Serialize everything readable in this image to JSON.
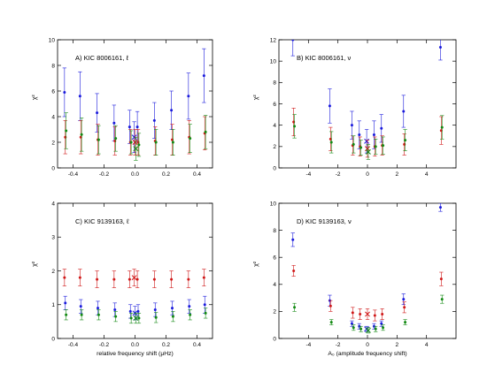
{
  "colors": {
    "blue": "#1a1adc",
    "green": "#138a13",
    "red": "#d01818",
    "axis": "#000000"
  },
  "chart_data": [
    {
      "type": "scatter",
      "title": "A) KIC 8006161, ℓ",
      "xlabel": "",
      "ylabel": "χ²",
      "xlim": [
        -0.5,
        0.5
      ],
      "ylim": [
        0,
        10
      ],
      "xticks": [
        "-0.4",
        "-0.2",
        "0.0",
        "0.2",
        "0.4"
      ],
      "xtick_values": [
        -0.4,
        -0.2,
        0,
        0.2,
        0.4
      ],
      "yticks": [
        "0",
        "2",
        "4",
        "6",
        "8",
        "10"
      ],
      "ytick_values": [
        0,
        2,
        4,
        6,
        8,
        10
      ],
      "x": [
        -0.45,
        -0.35,
        -0.24,
        -0.13,
        -0.03,
        0.0,
        0.02,
        0.13,
        0.24,
        0.35,
        0.45
      ],
      "cross_x": [
        0.0
      ],
      "series": [
        {
          "color": "blue",
          "values": [
            5.9,
            5.6,
            4.3,
            3.5,
            3.2,
            2.4,
            3.2,
            3.7,
            4.5,
            5.6,
            7.2
          ],
          "errors": [
            1.9,
            1.9,
            1.5,
            1.4,
            1.3,
            1.2,
            1.2,
            1.4,
            1.5,
            1.8,
            2.1
          ]
        },
        {
          "color": "red",
          "values": [
            2.4,
            2.4,
            2.2,
            2.1,
            2.0,
            2.0,
            2.0,
            2.1,
            2.2,
            2.4,
            2.7
          ],
          "errors": [
            1.3,
            1.3,
            1.2,
            1.1,
            1.0,
            1.0,
            1.0,
            1.1,
            1.2,
            1.3,
            1.3
          ]
        },
        {
          "color": "green",
          "values": [
            2.9,
            2.6,
            2.2,
            2.3,
            2.0,
            1.5,
            1.8,
            2.0,
            2.0,
            2.3,
            2.8
          ],
          "errors": [
            1.4,
            1.3,
            1.1,
            1.0,
            0.9,
            0.9,
            0.9,
            1.0,
            1.0,
            1.1,
            1.3
          ]
        }
      ]
    },
    {
      "type": "scatter",
      "title": "B) KIC 8006161, ν",
      "xlabel": "",
      "ylabel": "χ²",
      "xlim": [
        -6,
        6
      ],
      "ylim": [
        0,
        12
      ],
      "xticks": [
        "-4",
        "-2",
        "0",
        "2",
        "4"
      ],
      "xtick_values": [
        -4,
        -2,
        0,
        2,
        4
      ],
      "yticks": [
        "0",
        "2",
        "4",
        "6",
        "8",
        "10",
        "12"
      ],
      "ytick_values": [
        0,
        2,
        4,
        6,
        8,
        10,
        12
      ],
      "x": [
        -5,
        -2.5,
        -1,
        -0.5,
        0,
        0.5,
        1,
        2.5,
        5
      ],
      "cross_x": [
        0
      ],
      "series": [
        {
          "color": "blue",
          "values": [
            12.0,
            5.8,
            4.0,
            3.1,
            2.5,
            3.1,
            3.7,
            5.3,
            11.3
          ],
          "errors": [
            1.5,
            1.6,
            1.3,
            1.3,
            1.1,
            1.3,
            1.3,
            1.5,
            1.2
          ]
        },
        {
          "color": "red",
          "values": [
            4.3,
            2.7,
            2.1,
            2.0,
            1.8,
            2.0,
            2.1,
            2.2,
            3.5
          ],
          "errors": [
            1.3,
            1.1,
            0.9,
            0.9,
            0.8,
            0.9,
            0.9,
            1.0,
            1.3
          ]
        },
        {
          "color": "green",
          "values": [
            3.9,
            2.4,
            2.2,
            1.9,
            1.5,
            2.0,
            2.1,
            2.6,
            3.8
          ],
          "errors": [
            1.1,
            1.0,
            0.8,
            0.7,
            0.7,
            0.7,
            0.8,
            1.0,
            1.1
          ]
        }
      ]
    },
    {
      "type": "scatter",
      "title": "C) KIC 9139163, ℓ",
      "xlabel": "relative frequency shift (μHz)",
      "ylabel": "χ²",
      "xlim": [
        -0.5,
        0.5
      ],
      "ylim": [
        0,
        4
      ],
      "xticks": [
        "-0.4",
        "-0.2",
        "0.0",
        "0.2",
        "0.4"
      ],
      "xtick_values": [
        -0.4,
        -0.2,
        0,
        0.2,
        0.4
      ],
      "yticks": [
        "0",
        "1",
        "2",
        "3",
        "4"
      ],
      "ytick_values": [
        0,
        1,
        2,
        3,
        4
      ],
      "x": [
        -0.45,
        -0.35,
        -0.24,
        -0.13,
        -0.03,
        0.0,
        0.02,
        0.13,
        0.24,
        0.35,
        0.45
      ],
      "cross_x": [
        0.0
      ],
      "series": [
        {
          "color": "red",
          "values": [
            1.8,
            1.8,
            1.75,
            1.75,
            1.75,
            1.8,
            1.75,
            1.75,
            1.75,
            1.75,
            1.8
          ],
          "errors": [
            0.25,
            0.25,
            0.25,
            0.25,
            0.25,
            0.25,
            0.25,
            0.25,
            0.25,
            0.25,
            0.25
          ]
        },
        {
          "color": "blue",
          "values": [
            1.05,
            0.95,
            0.9,
            0.85,
            0.8,
            0.75,
            0.8,
            0.85,
            0.9,
            0.95,
            1.0
          ],
          "errors": [
            0.2,
            0.2,
            0.2,
            0.2,
            0.2,
            0.2,
            0.2,
            0.2,
            0.2,
            0.2,
            0.25
          ]
        },
        {
          "color": "green",
          "values": [
            0.7,
            0.7,
            0.7,
            0.65,
            0.6,
            0.6,
            0.6,
            0.62,
            0.65,
            0.7,
            0.75
          ],
          "errors": [
            0.15,
            0.15,
            0.15,
            0.15,
            0.15,
            0.15,
            0.15,
            0.15,
            0.15,
            0.15,
            0.15
          ]
        }
      ]
    },
    {
      "type": "scatter",
      "title": "D) KIC 9139163, ν",
      "xlabel": "A₀ (amplitude frequency shift)",
      "ylabel": "χ²",
      "xlim": [
        -6,
        6
      ],
      "ylim": [
        0,
        10
      ],
      "xticks": [
        "-4",
        "-2",
        "0",
        "2",
        "4"
      ],
      "xtick_values": [
        -4,
        -2,
        0,
        2,
        4
      ],
      "yticks": [
        "0",
        "2",
        "4",
        "6",
        "8",
        "10"
      ],
      "ytick_values": [
        0,
        2,
        4,
        6,
        8,
        10
      ],
      "x": [
        -5,
        -2.5,
        -1,
        -0.5,
        0,
        0.5,
        1,
        2.5,
        5
      ],
      "cross_x": [
        0
      ],
      "series": [
        {
          "color": "blue",
          "values": [
            7.3,
            2.8,
            1.1,
            0.9,
            0.7,
            0.9,
            1.1,
            2.9,
            9.7
          ],
          "errors": [
            0.5,
            0.4,
            0.2,
            0.2,
            0.2,
            0.2,
            0.2,
            0.4,
            0.3
          ]
        },
        {
          "color": "red",
          "values": [
            5.0,
            2.4,
            1.9,
            1.8,
            1.8,
            1.7,
            1.8,
            2.3,
            4.4
          ],
          "errors": [
            0.4,
            0.4,
            0.4,
            0.4,
            0.4,
            0.4,
            0.4,
            0.4,
            0.5
          ]
        },
        {
          "color": "green",
          "values": [
            2.3,
            1.2,
            0.8,
            0.7,
            0.6,
            0.7,
            0.8,
            1.2,
            2.9
          ],
          "errors": [
            0.3,
            0.2,
            0.2,
            0.2,
            0.2,
            0.2,
            0.2,
            0.2,
            0.3
          ]
        }
      ]
    }
  ]
}
